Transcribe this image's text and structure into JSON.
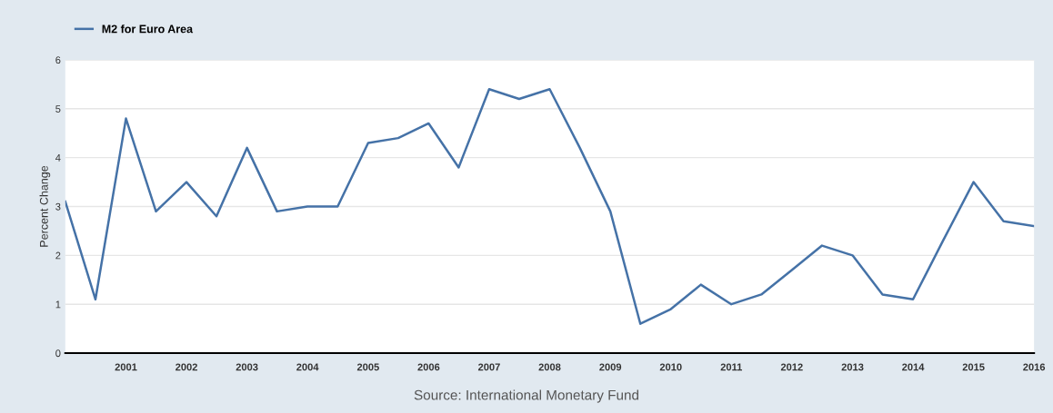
{
  "chart_data": {
    "type": "line",
    "ylabel": "Percent Change",
    "legend": "top left",
    "grid": "y",
    "x": [
      "2000-01",
      "2000-07",
      "2001-01",
      "2001-07",
      "2002-01",
      "2002-07",
      "2003-01",
      "2003-07",
      "2004-01",
      "2004-07",
      "2005-01",
      "2005-07",
      "2006-01",
      "2006-07",
      "2007-01",
      "2007-07",
      "2008-01",
      "2008-07",
      "2009-01",
      "2009-07",
      "2010-01",
      "2010-07",
      "2011-01",
      "2011-07",
      "2012-01",
      "2012-07",
      "2013-01",
      "2013-07",
      "2014-01",
      "2014-07",
      "2015-01",
      "2015-07",
      "2016-01"
    ],
    "series": [
      {
        "name": "M2 for Euro Area",
        "color": "#4572a7",
        "values": [
          3.1,
          1.1,
          4.8,
          2.9,
          3.5,
          2.8,
          4.2,
          2.9,
          3.0,
          3.0,
          4.3,
          4.4,
          4.7,
          3.8,
          5.4,
          5.2,
          5.4,
          4.2,
          2.9,
          0.6,
          0.9,
          1.4,
          1.0,
          1.2,
          1.7,
          2.2,
          2.0,
          1.2,
          1.1,
          2.3,
          3.5,
          2.7,
          2.6
        ]
      }
    ],
    "xlim": [
      "2000-01",
      "2016-01"
    ],
    "xticks": [
      "2001",
      "2002",
      "2003",
      "2004",
      "2005",
      "2006",
      "2007",
      "2008",
      "2009",
      "2010",
      "2011",
      "2012",
      "2013",
      "2014",
      "2015",
      "2016"
    ],
    "ylim": [
      0,
      6
    ],
    "yticks": [
      0,
      1,
      2,
      3,
      4,
      5,
      6
    ],
    "annotations": [
      "Source: International Monetary Fund"
    ]
  }
}
